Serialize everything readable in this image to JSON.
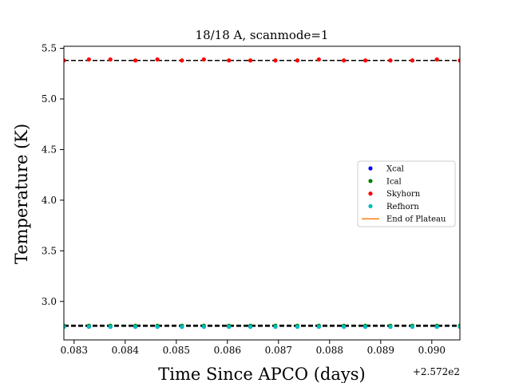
{
  "chart_data": {
    "type": "scatter",
    "title": "18/18 A, scanmode=1",
    "xlabel": "Time Since APCO (days)",
    "ylabel": "Temperature (K)",
    "x_offset_label": "+2.572e2",
    "xlim": [
      0.0828,
      0.09055
    ],
    "ylim": [
      2.62,
      5.52
    ],
    "xticks": [
      0.083,
      0.084,
      0.085,
      0.086,
      0.087,
      0.088,
      0.089,
      0.09
    ],
    "xtick_labels": [
      "0.083",
      "0.084",
      "0.085",
      "0.086",
      "0.087",
      "0.088",
      "0.089",
      "0.090"
    ],
    "yticks": [
      3.0,
      3.5,
      4.0,
      4.5,
      5.0,
      5.5
    ],
    "ytick_labels": [
      "3.0",
      "3.5",
      "4.0",
      "4.5",
      "5.0",
      "5.5"
    ],
    "grid": false,
    "legend_position": "center-right",
    "x": [
      0.0828,
      0.08329,
      0.08371,
      0.0842,
      0.08463,
      0.08511,
      0.08554,
      0.08603,
      0.08645,
      0.08694,
      0.08737,
      0.08779,
      0.08828,
      0.0887,
      0.08919,
      0.08962,
      0.0901,
      0.09055
    ],
    "series": [
      {
        "name": "Xcal",
        "color": "#0000ff",
        "marker": "dot",
        "values": [
          2.75,
          2.75,
          2.75,
          2.75,
          2.75,
          2.75,
          2.75,
          2.75,
          2.75,
          2.75,
          2.75,
          2.75,
          2.75,
          2.75,
          2.75,
          2.75,
          2.75,
          2.75
        ]
      },
      {
        "name": "Ical",
        "color": "#008000",
        "marker": "dot",
        "values": [
          2.76,
          2.76,
          2.76,
          2.76,
          2.76,
          2.76,
          2.76,
          2.76,
          2.76,
          2.76,
          2.76,
          2.76,
          2.76,
          2.76,
          2.76,
          2.76,
          2.76,
          2.76
        ]
      },
      {
        "name": "Skyhorn",
        "color": "#ff0000",
        "marker": "dot",
        "values": [
          5.38,
          5.39,
          5.39,
          5.38,
          5.39,
          5.38,
          5.39,
          5.38,
          5.38,
          5.38,
          5.38,
          5.39,
          5.38,
          5.38,
          5.38,
          5.38,
          5.39,
          5.38
        ]
      },
      {
        "name": "Refhorn",
        "color": "#00bfbf",
        "marker": "dot",
        "values": [
          2.75,
          2.75,
          2.75,
          2.75,
          2.75,
          2.75,
          2.75,
          2.75,
          2.75,
          2.75,
          2.75,
          2.75,
          2.75,
          2.75,
          2.75,
          2.75,
          2.75,
          2.75
        ]
      },
      {
        "name": "End of Plateau",
        "color": "#ff7f0e",
        "marker": "line",
        "values": []
      }
    ],
    "reference_lines": [
      {
        "style": "dashed",
        "color": "#000000",
        "y": 5.38
      },
      {
        "style": "dashed",
        "color": "#000000",
        "y": 2.765
      },
      {
        "style": "dashed",
        "color": "#000000",
        "y": 2.755
      }
    ]
  }
}
